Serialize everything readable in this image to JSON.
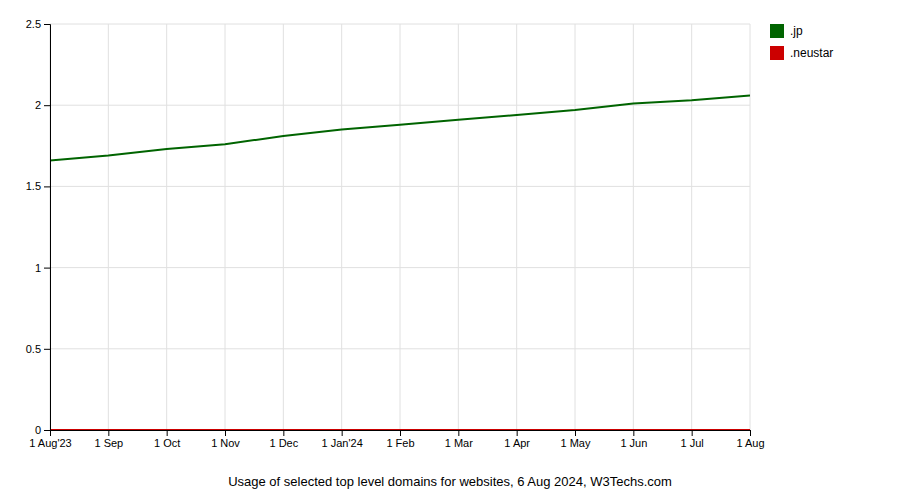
{
  "chart_data": {
    "type": "line",
    "title": "Usage of selected top level domains for websites, 6 Aug 2024, W3Techs.com",
    "categories": [
      "1 Aug'23",
      "1 Sep",
      "1 Oct",
      "1 Nov",
      "1 Dec",
      "1 Jan'24",
      "1 Feb",
      "1 Mar",
      "1 Apr",
      "1 May",
      "1 Jun",
      "1 Jul",
      "1 Aug"
    ],
    "series": [
      {
        "name": ".jp",
        "color": "#006400",
        "values": [
          1.66,
          1.69,
          1.73,
          1.76,
          1.81,
          1.85,
          1.88,
          1.91,
          1.94,
          1.97,
          2.01,
          2.03,
          2.06
        ]
      },
      {
        "name": ".neustar",
        "color": "#cc0000",
        "values": [
          0.0,
          0.0,
          0.0,
          0.0,
          0.0,
          0.0,
          0.0,
          0.0,
          0.0,
          0.0,
          0.0,
          0.0,
          0.0
        ]
      }
    ],
    "ylim": [
      0,
      2.5
    ],
    "yticks": [
      0,
      0.5,
      1,
      1.5,
      2,
      2.5
    ],
    "grid": true,
    "legend": "right"
  }
}
